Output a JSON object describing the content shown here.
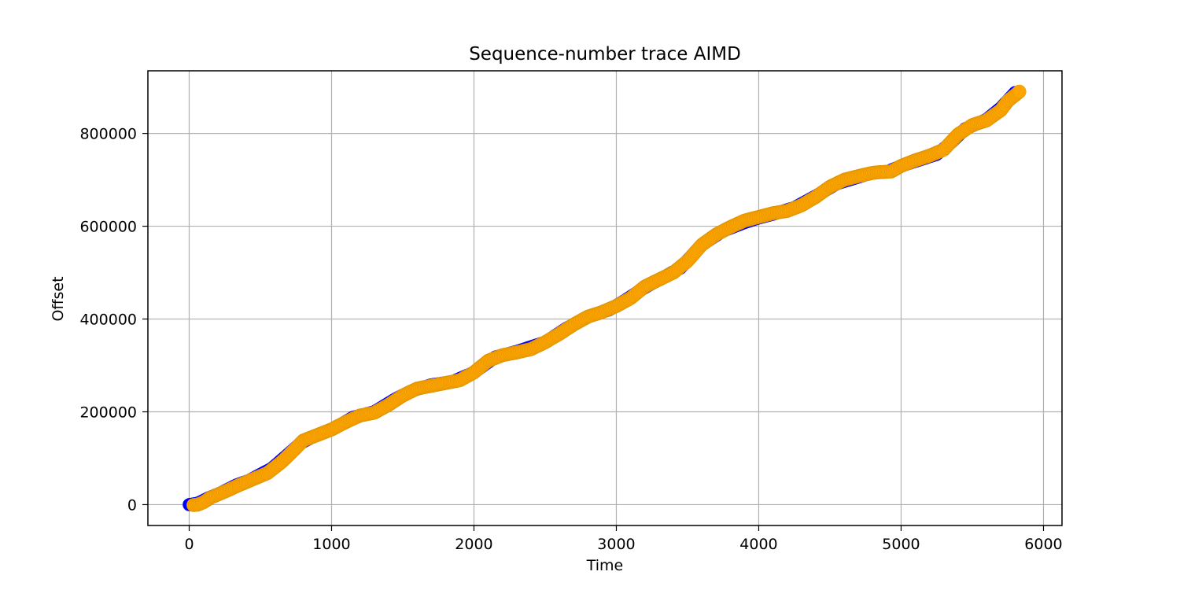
{
  "chart_data": {
    "type": "scatter",
    "title": "Sequence-number trace AIMD",
    "xlabel": "Time",
    "ylabel": "Offset",
    "xlim": [
      -290,
      6130
    ],
    "ylim": [
      -45000,
      935000
    ],
    "xticks": [
      0,
      1000,
      2000,
      3000,
      4000,
      5000,
      6000
    ],
    "yticks": [
      0,
      200000,
      400000,
      600000,
      800000
    ],
    "grid": true,
    "legend": "none",
    "series": [
      {
        "color": "#0000ff",
        "marker": "circle",
        "points": [
          [
            0,
            0
          ],
          [
            25,
            1000
          ],
          [
            60,
            3000
          ],
          [
            140,
            15000
          ],
          [
            220,
            25000
          ],
          [
            330,
            42000
          ],
          [
            420,
            52000
          ],
          [
            580,
            78000
          ],
          [
            700,
            110000
          ],
          [
            780,
            132000
          ],
          [
            860,
            145000
          ],
          [
            1020,
            165000
          ],
          [
            1150,
            188000
          ],
          [
            1300,
            200000
          ],
          [
            1450,
            228000
          ],
          [
            1560,
            245000
          ],
          [
            1700,
            258000
          ],
          [
            1850,
            265000
          ],
          [
            2000,
            285000
          ],
          [
            2150,
            318000
          ],
          [
            2300,
            330000
          ],
          [
            2500,
            350000
          ],
          [
            2650,
            380000
          ],
          [
            2800,
            405000
          ],
          [
            2950,
            420000
          ],
          [
            3050,
            438000
          ],
          [
            3200,
            468000
          ],
          [
            3300,
            485000
          ],
          [
            3450,
            510000
          ],
          [
            3600,
            560000
          ],
          [
            3750,
            590000
          ],
          [
            3900,
            608000
          ],
          [
            4000,
            618000
          ],
          [
            4100,
            626000
          ],
          [
            4250,
            640000
          ],
          [
            4400,
            665000
          ],
          [
            4550,
            692000
          ],
          [
            4700,
            706000
          ],
          [
            4780,
            714000
          ],
          [
            4850,
            717000
          ],
          [
            4900,
            717000
          ],
          [
            5000,
            730000
          ],
          [
            5150,
            745000
          ],
          [
            5250,
            755000
          ],
          [
            5350,
            780000
          ],
          [
            5450,
            810000
          ],
          [
            5600,
            830000
          ],
          [
            5700,
            855000
          ],
          [
            5800,
            888000
          ]
        ]
      },
      {
        "color": "#ffa500",
        "marker": "circle",
        "anchors": [
          [
            30,
            -1000
          ],
          [
            60,
            0
          ],
          [
            100,
            5000
          ],
          [
            150,
            15000
          ],
          [
            250,
            28000
          ],
          [
            350,
            42000
          ],
          [
            450,
            55000
          ],
          [
            550,
            68000
          ],
          [
            650,
            92000
          ],
          [
            750,
            122000
          ],
          [
            800,
            138000
          ],
          [
            900,
            150000
          ],
          [
            1000,
            162000
          ],
          [
            1100,
            178000
          ],
          [
            1200,
            192000
          ],
          [
            1300,
            198000
          ],
          [
            1400,
            215000
          ],
          [
            1500,
            235000
          ],
          [
            1600,
            250000
          ],
          [
            1700,
            256000
          ],
          [
            1800,
            262000
          ],
          [
            1900,
            268000
          ],
          [
            2000,
            285000
          ],
          [
            2100,
            310000
          ],
          [
            2200,
            322000
          ],
          [
            2300,
            328000
          ],
          [
            2400,
            335000
          ],
          [
            2500,
            350000
          ],
          [
            2600,
            368000
          ],
          [
            2700,
            388000
          ],
          [
            2800,
            405000
          ],
          [
            2900,
            415000
          ],
          [
            3000,
            428000
          ],
          [
            3100,
            445000
          ],
          [
            3200,
            470000
          ],
          [
            3300,
            485000
          ],
          [
            3400,
            500000
          ],
          [
            3500,
            525000
          ],
          [
            3600,
            560000
          ],
          [
            3700,
            582000
          ],
          [
            3800,
            598000
          ],
          [
            3900,
            612000
          ],
          [
            4000,
            620000
          ],
          [
            4100,
            628000
          ],
          [
            4200,
            633000
          ],
          [
            4300,
            645000
          ],
          [
            4400,
            663000
          ],
          [
            4500,
            685000
          ],
          [
            4600,
            700000
          ],
          [
            4700,
            708000
          ],
          [
            4800,
            715000
          ],
          [
            4830,
            716000
          ],
          [
            4930,
            718000
          ],
          [
            5000,
            730000
          ],
          [
            5100,
            742000
          ],
          [
            5200,
            752000
          ],
          [
            5300,
            765000
          ],
          [
            5400,
            798000
          ],
          [
            5500,
            818000
          ],
          [
            5600,
            828000
          ],
          [
            5700,
            850000
          ],
          [
            5750,
            870000
          ],
          [
            5830,
            890000
          ]
        ]
      }
    ]
  }
}
